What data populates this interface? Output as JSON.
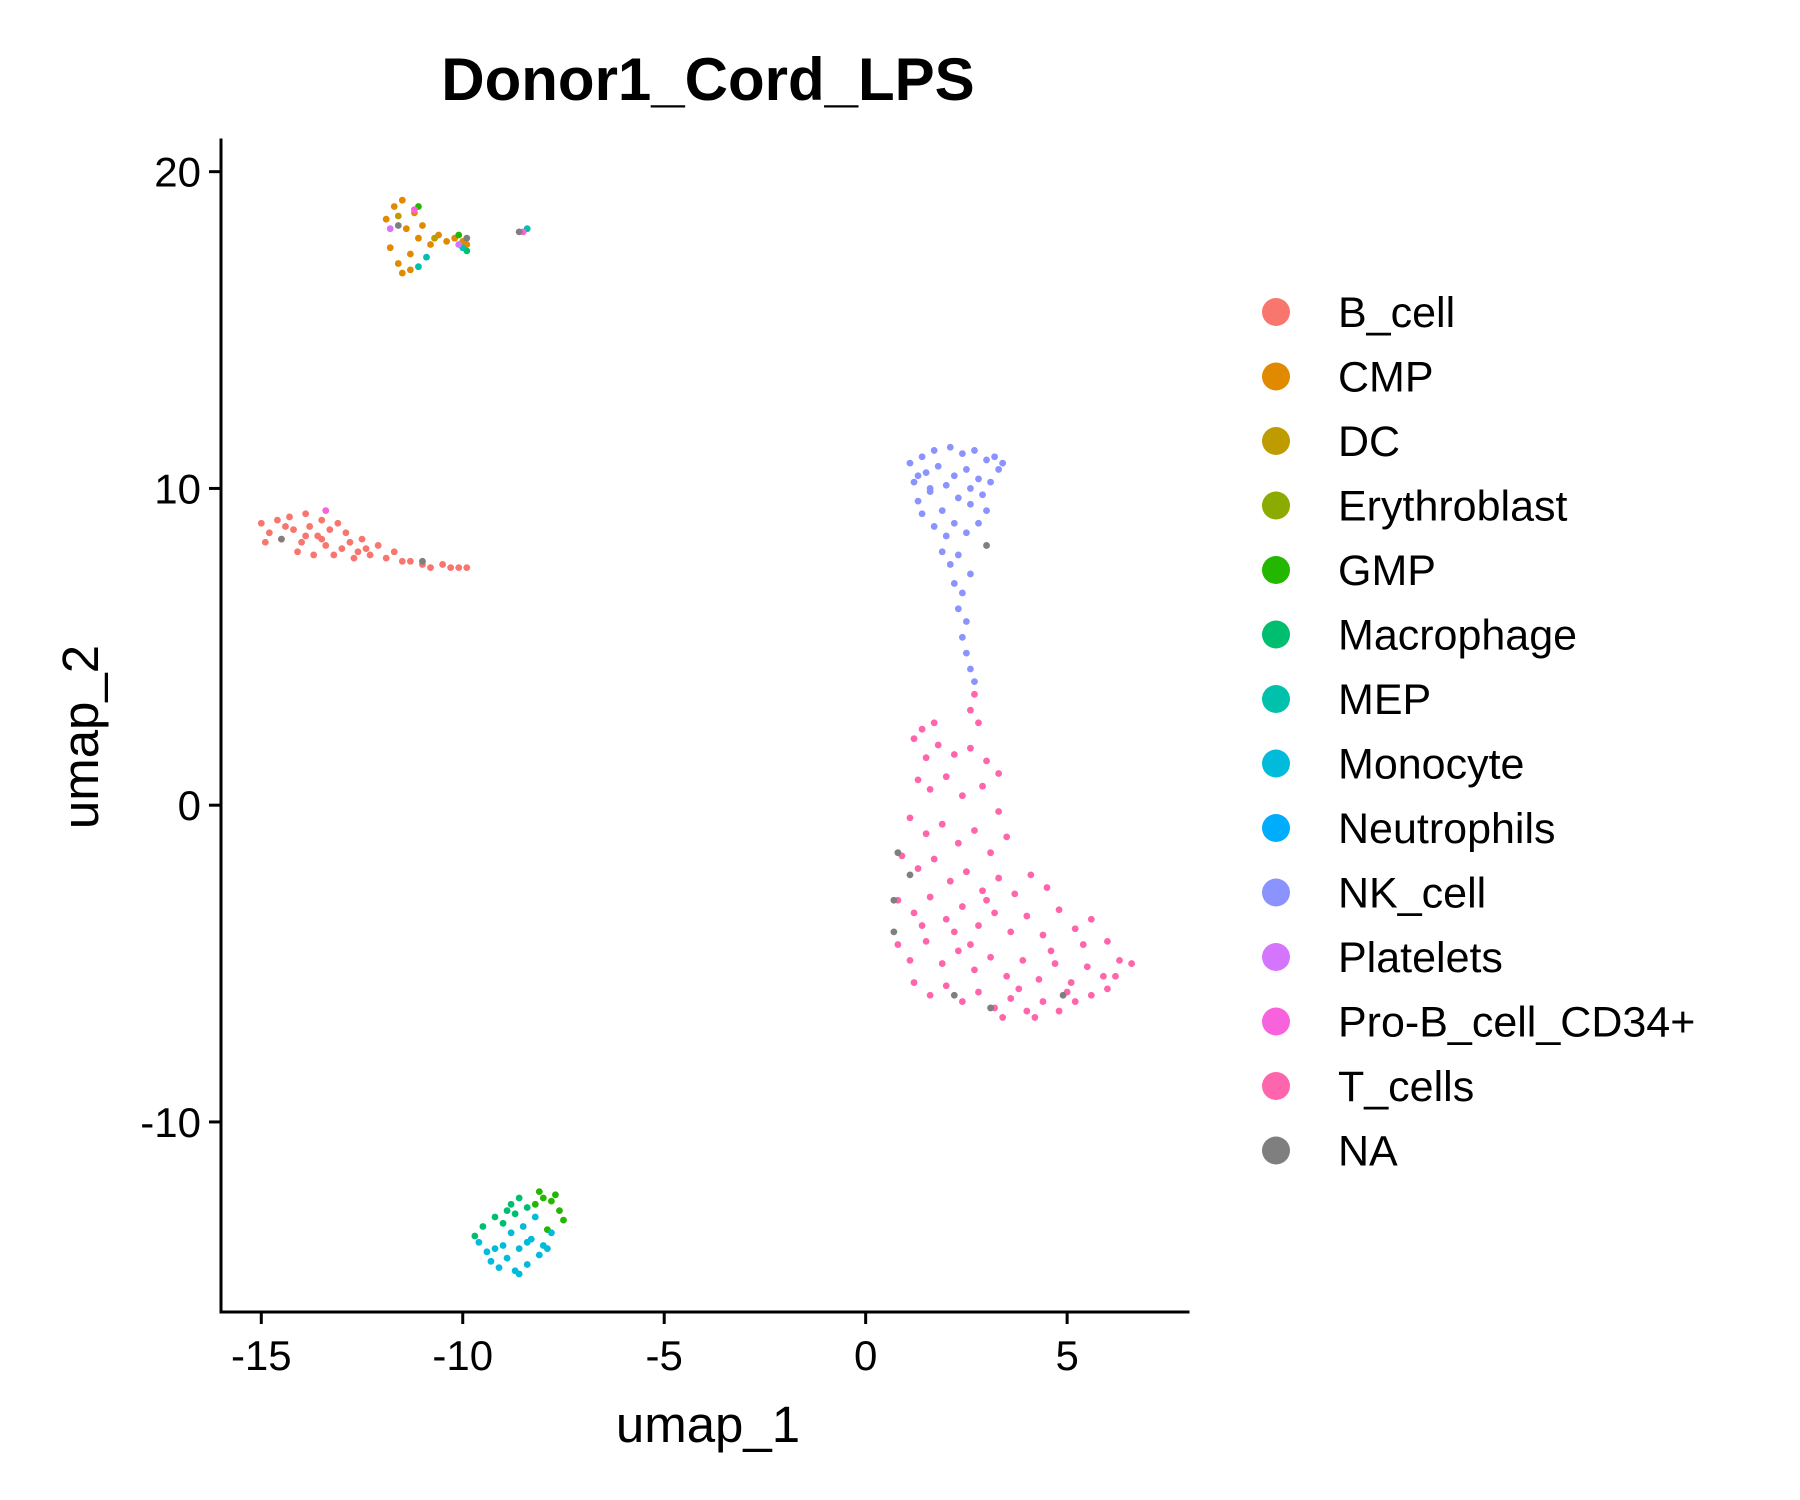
{
  "chart_data": {
    "type": "scatter",
    "title": "Donor1_Cord_LPS",
    "xlabel": "umap_1",
    "ylabel": "umap_2",
    "xlim": [
      -16,
      8
    ],
    "ylim": [
      -16,
      21
    ],
    "x_ticks": [
      -15,
      -10,
      -5,
      0,
      5
    ],
    "y_ticks": [
      -10,
      0,
      10,
      20
    ],
    "x_tick_labels": [
      "-15",
      "-10",
      "-5",
      "0",
      "5"
    ],
    "y_tick_labels": [
      "-10",
      "0",
      "10",
      "20"
    ],
    "grid": false,
    "legend_position": "right",
    "legend": [
      {
        "name": "B_cell",
        "color": "#F8766D"
      },
      {
        "name": "CMP",
        "color": "#E18A00"
      },
      {
        "name": "DC",
        "color": "#BE9C00"
      },
      {
        "name": "Erythroblast",
        "color": "#8CAB00"
      },
      {
        "name": "GMP",
        "color": "#24B700"
      },
      {
        "name": "Macrophage",
        "color": "#00BE70"
      },
      {
        "name": "MEP",
        "color": "#00C1AB"
      },
      {
        "name": "Monocyte",
        "color": "#00BBDA"
      },
      {
        "name": "Neutrophils",
        "color": "#00ACFC"
      },
      {
        "name": "NK_cell",
        "color": "#8B93FF"
      },
      {
        "name": "Platelets",
        "color": "#D575FE"
      },
      {
        "name": "Pro-B_cell_CD34+",
        "color": "#F962DD"
      },
      {
        "name": "T_cells",
        "color": "#FF65AC"
      },
      {
        "name": "NA",
        "color": "#7F7F7F"
      }
    ],
    "series": [
      {
        "name": "B_cell",
        "color": "#F8766D",
        "points": [
          [
            -15.0,
            8.9
          ],
          [
            -14.8,
            8.6
          ],
          [
            -14.6,
            9.0
          ],
          [
            -14.5,
            8.4
          ],
          [
            -14.3,
            9.1
          ],
          [
            -14.2,
            8.7
          ],
          [
            -14.0,
            8.3
          ],
          [
            -13.9,
            9.2
          ],
          [
            -13.8,
            8.8
          ],
          [
            -13.6,
            8.5
          ],
          [
            -13.5,
            9.0
          ],
          [
            -13.4,
            8.2
          ],
          [
            -13.3,
            8.7
          ],
          [
            -13.1,
            8.9
          ],
          [
            -13.0,
            8.1
          ],
          [
            -12.9,
            8.6
          ],
          [
            -12.8,
            8.3
          ],
          [
            -12.6,
            8.0
          ],
          [
            -12.5,
            8.4
          ],
          [
            -12.3,
            7.9
          ],
          [
            -12.1,
            8.2
          ],
          [
            -11.9,
            7.8
          ],
          [
            -11.7,
            8.0
          ],
          [
            -11.5,
            7.7
          ],
          [
            -11.3,
            7.7
          ],
          [
            -11.0,
            7.6
          ],
          [
            -10.8,
            7.5
          ],
          [
            -10.5,
            7.6
          ],
          [
            -10.3,
            7.5
          ],
          [
            -10.1,
            7.5
          ],
          [
            -9.9,
            7.5
          ],
          [
            -14.9,
            8.3
          ],
          [
            -14.1,
            8.0
          ],
          [
            -13.7,
            7.9
          ],
          [
            -13.2,
            7.9
          ],
          [
            -12.7,
            7.8
          ],
          [
            -14.4,
            8.8
          ],
          [
            -13.9,
            8.5
          ],
          [
            -13.5,
            8.4
          ],
          [
            -12.4,
            8.1
          ]
        ]
      },
      {
        "name": "CMP",
        "color": "#E18A00",
        "points": [
          [
            -11.9,
            18.5
          ],
          [
            -11.8,
            17.6
          ],
          [
            -11.7,
            18.9
          ],
          [
            -11.6,
            17.1
          ],
          [
            -11.5,
            16.8
          ],
          [
            -11.4,
            18.2
          ],
          [
            -11.3,
            17.4
          ],
          [
            -11.2,
            18.7
          ],
          [
            -11.1,
            17.9
          ],
          [
            -11.0,
            18.3
          ],
          [
            -10.8,
            17.7
          ],
          [
            -10.6,
            18.0
          ],
          [
            -10.4,
            17.8
          ],
          [
            -10.2,
            17.9
          ],
          [
            -10.0,
            17.8
          ],
          [
            -9.9,
            17.7
          ],
          [
            -11.5,
            19.1
          ],
          [
            -11.3,
            16.9
          ]
        ]
      },
      {
        "name": "DC",
        "color": "#BE9C00",
        "points": [
          [
            -11.6,
            18.6
          ],
          [
            -10.7,
            17.9
          ]
        ]
      },
      {
        "name": "GMP",
        "color": "#24B700",
        "points": [
          [
            -11.1,
            18.9
          ],
          [
            -10.1,
            18.0
          ],
          [
            -8.0,
            -12.4
          ],
          [
            -7.8,
            -12.5
          ],
          [
            -7.6,
            -12.8
          ],
          [
            -7.5,
            -13.1
          ],
          [
            -7.7,
            -12.3
          ],
          [
            -8.2,
            -12.6
          ],
          [
            -7.9,
            -13.4
          ],
          [
            -8.1,
            -12.2
          ]
        ]
      },
      {
        "name": "Macrophage",
        "color": "#00BE70",
        "points": [
          [
            -9.9,
            17.5
          ],
          [
            -8.8,
            -12.6
          ],
          [
            -8.9,
            -12.8
          ],
          [
            -9.2,
            -13.0
          ],
          [
            -9.5,
            -13.3
          ],
          [
            -9.7,
            -13.6
          ],
          [
            -8.6,
            -12.4
          ],
          [
            -8.4,
            -12.7
          ],
          [
            -9.0,
            -13.2
          ],
          [
            -8.7,
            -12.9
          ]
        ]
      },
      {
        "name": "MEP",
        "color": "#00C1AB",
        "points": [
          [
            -11.1,
            17.0
          ],
          [
            -10.9,
            17.3
          ],
          [
            -8.4,
            18.2
          ],
          [
            -10.0,
            17.6
          ]
        ]
      },
      {
        "name": "Monocyte",
        "color": "#00BBDA",
        "points": [
          [
            -9.6,
            -13.8
          ],
          [
            -9.4,
            -14.1
          ],
          [
            -9.3,
            -14.4
          ],
          [
            -9.1,
            -14.6
          ],
          [
            -8.9,
            -14.3
          ],
          [
            -8.7,
            -14.7
          ],
          [
            -8.6,
            -14.0
          ],
          [
            -8.4,
            -14.5
          ],
          [
            -8.3,
            -13.7
          ],
          [
            -8.1,
            -14.2
          ],
          [
            -8.0,
            -13.9
          ],
          [
            -7.8,
            -13.5
          ],
          [
            -9.0,
            -13.9
          ],
          [
            -8.8,
            -13.5
          ],
          [
            -8.5,
            -13.3
          ],
          [
            -8.2,
            -13.0
          ],
          [
            -9.2,
            -14.0
          ],
          [
            -8.6,
            -14.8
          ],
          [
            -7.9,
            -14.0
          ],
          [
            -8.4,
            -13.8
          ]
        ]
      },
      {
        "name": "NK_cell",
        "color": "#8B93FF",
        "points": [
          [
            1.1,
            10.8
          ],
          [
            1.2,
            10.2
          ],
          [
            1.3,
            9.6
          ],
          [
            1.4,
            11.0
          ],
          [
            1.5,
            10.5
          ],
          [
            1.6,
            9.9
          ],
          [
            1.7,
            11.2
          ],
          [
            1.8,
            10.7
          ],
          [
            1.9,
            9.3
          ],
          [
            2.0,
            10.1
          ],
          [
            2.1,
            11.3
          ],
          [
            2.2,
            10.4
          ],
          [
            2.3,
            9.7
          ],
          [
            2.4,
            11.1
          ],
          [
            2.5,
            10.6
          ],
          [
            2.6,
            9.5
          ],
          [
            2.7,
            11.2
          ],
          [
            2.8,
            10.3
          ],
          [
            2.9,
            9.8
          ],
          [
            3.0,
            10.9
          ],
          [
            3.1,
            10.2
          ],
          [
            3.2,
            11.0
          ],
          [
            3.3,
            10.6
          ],
          [
            3.4,
            10.8
          ],
          [
            1.4,
            9.2
          ],
          [
            1.7,
            8.8
          ],
          [
            2.0,
            8.5
          ],
          [
            2.2,
            8.9
          ],
          [
            2.5,
            8.6
          ],
          [
            2.8,
            8.9
          ],
          [
            1.9,
            8.0
          ],
          [
            2.1,
            7.6
          ],
          [
            2.3,
            7.9
          ],
          [
            2.6,
            7.3
          ],
          [
            2.2,
            7.0
          ],
          [
            2.4,
            6.7
          ],
          [
            2.3,
            6.2
          ],
          [
            2.5,
            5.8
          ],
          [
            2.4,
            5.3
          ],
          [
            2.5,
            4.8
          ],
          [
            2.6,
            4.3
          ],
          [
            2.7,
            3.9
          ],
          [
            1.6,
            10.0
          ],
          [
            2.6,
            10.0
          ],
          [
            3.0,
            9.3
          ],
          [
            1.3,
            10.4
          ]
        ]
      },
      {
        "name": "Platelets",
        "color": "#D575FE",
        "points": [
          [
            -11.8,
            18.2
          ],
          [
            -10.1,
            17.7
          ]
        ]
      },
      {
        "name": "Pro-B_cell_CD34+",
        "color": "#F962DD",
        "points": [
          [
            -13.4,
            9.3
          ],
          [
            -8.5,
            18.1
          ],
          [
            -11.2,
            18.8
          ]
        ]
      },
      {
        "name": "T_cells",
        "color": "#FF65AC",
        "points": [
          [
            2.7,
            3.5
          ],
          [
            2.6,
            3.0
          ],
          [
            2.8,
            2.6
          ],
          [
            1.4,
            2.4
          ],
          [
            1.7,
            2.6
          ],
          [
            1.2,
            2.1
          ],
          [
            1.5,
            1.5
          ],
          [
            1.8,
            1.9
          ],
          [
            2.2,
            1.6
          ],
          [
            2.6,
            1.8
          ],
          [
            3.0,
            1.4
          ],
          [
            3.3,
            1.0
          ],
          [
            1.3,
            0.8
          ],
          [
            1.6,
            0.5
          ],
          [
            2.0,
            0.9
          ],
          [
            2.4,
            0.3
          ],
          [
            2.9,
            0.6
          ],
          [
            3.3,
            -0.2
          ],
          [
            1.1,
            -0.4
          ],
          [
            1.5,
            -0.9
          ],
          [
            1.9,
            -0.6
          ],
          [
            2.3,
            -1.2
          ],
          [
            2.7,
            -0.8
          ],
          [
            3.1,
            -1.5
          ],
          [
            3.5,
            -1.0
          ],
          [
            0.9,
            -1.6
          ],
          [
            1.3,
            -2.0
          ],
          [
            1.7,
            -1.7
          ],
          [
            2.1,
            -2.4
          ],
          [
            2.5,
            -2.1
          ],
          [
            2.9,
            -2.7
          ],
          [
            3.3,
            -2.3
          ],
          [
            3.7,
            -2.8
          ],
          [
            4.1,
            -2.2
          ],
          [
            4.5,
            -2.6
          ],
          [
            0.8,
            -3.0
          ],
          [
            1.2,
            -3.4
          ],
          [
            1.6,
            -2.9
          ],
          [
            2.0,
            -3.6
          ],
          [
            2.4,
            -3.2
          ],
          [
            2.8,
            -3.8
          ],
          [
            3.2,
            -3.4
          ],
          [
            3.6,
            -4.0
          ],
          [
            4.0,
            -3.5
          ],
          [
            4.4,
            -4.1
          ],
          [
            4.8,
            -3.3
          ],
          [
            5.2,
            -3.9
          ],
          [
            5.6,
            -3.6
          ],
          [
            6.0,
            -4.3
          ],
          [
            0.8,
            -4.4
          ],
          [
            1.1,
            -4.9
          ],
          [
            1.5,
            -4.3
          ],
          [
            1.9,
            -5.0
          ],
          [
            2.3,
            -4.6
          ],
          [
            2.7,
            -5.2
          ],
          [
            3.1,
            -4.8
          ],
          [
            3.5,
            -5.4
          ],
          [
            3.9,
            -4.9
          ],
          [
            4.3,
            -5.5
          ],
          [
            4.7,
            -5.0
          ],
          [
            5.1,
            -5.6
          ],
          [
            5.5,
            -5.1
          ],
          [
            5.9,
            -5.4
          ],
          [
            6.3,
            -4.9
          ],
          [
            6.6,
            -5.0
          ],
          [
            1.2,
            -5.6
          ],
          [
            1.6,
            -6.0
          ],
          [
            2.0,
            -5.7
          ],
          [
            2.4,
            -6.2
          ],
          [
            2.8,
            -5.9
          ],
          [
            3.2,
            -6.4
          ],
          [
            3.6,
            -6.1
          ],
          [
            4.0,
            -6.5
          ],
          [
            4.4,
            -6.2
          ],
          [
            4.8,
            -6.5
          ],
          [
            5.2,
            -6.2
          ],
          [
            5.6,
            -6.0
          ],
          [
            6.0,
            -5.8
          ],
          [
            2.2,
            -4.0
          ],
          [
            3.0,
            -3.0
          ],
          [
            4.6,
            -4.6
          ],
          [
            5.4,
            -4.4
          ],
          [
            2.6,
            -4.4
          ],
          [
            3.8,
            -5.8
          ],
          [
            1.4,
            -3.8
          ],
          [
            5.0,
            -5.9
          ],
          [
            6.2,
            -5.4
          ],
          [
            3.4,
            -6.7
          ],
          [
            4.2,
            -6.7
          ]
        ]
      },
      {
        "name": "NA",
        "color": "#7F7F7F",
        "points": [
          [
            -14.5,
            8.4
          ],
          [
            -11.0,
            7.7
          ],
          [
            -11.6,
            18.3
          ],
          [
            0.8,
            -1.5
          ],
          [
            0.7,
            -3.0
          ],
          [
            0.7,
            -4.0
          ],
          [
            1.1,
            -2.2
          ],
          [
            2.2,
            -6.0
          ],
          [
            3.1,
            -6.4
          ],
          [
            4.9,
            -6.0
          ],
          [
            3.0,
            8.2
          ],
          [
            -9.9,
            17.9
          ],
          [
            -8.6,
            18.1
          ]
        ]
      }
    ]
  }
}
